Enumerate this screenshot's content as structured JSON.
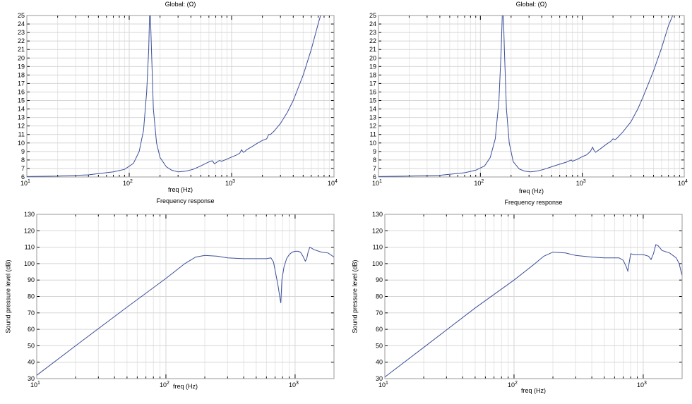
{
  "chart_data": [
    {
      "type": "line",
      "title": "Global:  (Ω)",
      "xlabel": "freq (Hz)",
      "ylabel": "",
      "xscale": "log",
      "xlim": [
        10,
        10000
      ],
      "ylim": [
        6,
        25
      ],
      "xticks": [
        10,
        100,
        1000,
        10000
      ],
      "xtick_labels": [
        [
          "10",
          "1"
        ],
        [
          "10",
          "2"
        ],
        [
          "10",
          "3"
        ],
        [
          "10",
          "4"
        ]
      ],
      "yticks": [
        6,
        7,
        8,
        9,
        10,
        11,
        12,
        13,
        14,
        15,
        16,
        17,
        18,
        19,
        20,
        21,
        22,
        23,
        24,
        25
      ],
      "grid": true,
      "series": [
        {
          "x": [
            10,
            20,
            40,
            70,
            90,
            110,
            125,
            138,
            148,
            155,
            158,
            161,
            165,
            172,
            185,
            200,
            230,
            260,
            300,
            360,
            420,
            500,
            560,
            620,
            650,
            680,
            720,
            760,
            800,
            900,
            1000,
            1100,
            1200,
            1250,
            1300,
            1350,
            1400,
            1600,
            1800,
            2000,
            2200,
            2300,
            2400,
            2600,
            3000,
            3500,
            4000,
            5000,
            6000,
            7000,
            7400
          ],
          "y": [
            6.05,
            6.1,
            6.25,
            6.6,
            6.9,
            7.6,
            9.0,
            11.5,
            16.0,
            21.0,
            25.0,
            25.0,
            21.0,
            14.0,
            10.0,
            8.3,
            7.2,
            6.8,
            6.6,
            6.7,
            6.9,
            7.3,
            7.6,
            7.85,
            7.9,
            7.55,
            7.75,
            7.95,
            7.85,
            8.1,
            8.35,
            8.55,
            8.8,
            9.2,
            8.9,
            9.0,
            9.2,
            9.6,
            10.0,
            10.3,
            10.5,
            11.0,
            11.0,
            11.4,
            12.3,
            13.6,
            15.0,
            18.0,
            21.0,
            24.0,
            25.0
          ]
        }
      ]
    },
    {
      "type": "line",
      "title": "Global:  (Ω)",
      "xlabel": "freq (Hz)",
      "ylabel": "",
      "xscale": "log",
      "xlim": [
        10,
        10000
      ],
      "ylim": [
        6,
        25
      ],
      "xticks": [
        10,
        100,
        1000,
        10000
      ],
      "xtick_labels": [
        [
          "10",
          "1"
        ],
        [
          "10",
          "2"
        ],
        [
          "10",
          "3"
        ],
        [
          "10",
          "4"
        ]
      ],
      "yticks": [
        6,
        7,
        8,
        9,
        10,
        11,
        12,
        13,
        14,
        15,
        16,
        17,
        18,
        19,
        20,
        21,
        22,
        23,
        24,
        25
      ],
      "grid": true,
      "series": [
        {
          "x": [
            10,
            20,
            40,
            70,
            90,
            110,
            125,
            140,
            152,
            160,
            164,
            168,
            172,
            180,
            192,
            210,
            240,
            270,
            310,
            360,
            420,
            500,
            600,
            700,
            760,
            780,
            800,
            900,
            1000,
            1100,
            1200,
            1260,
            1300,
            1350,
            1500,
            1700,
            1900,
            2000,
            2100,
            2200,
            2500,
            3000,
            3500,
            4000,
            5000,
            6000,
            7000,
            7700
          ],
          "y": [
            6.05,
            6.1,
            6.2,
            6.5,
            6.8,
            7.3,
            8.3,
            10.5,
            15.0,
            21.0,
            25.0,
            25.0,
            21.0,
            14.0,
            10.0,
            7.8,
            6.95,
            6.7,
            6.6,
            6.7,
            6.9,
            7.2,
            7.5,
            7.75,
            7.95,
            8.0,
            7.85,
            8.1,
            8.4,
            8.6,
            9.0,
            9.5,
            9.15,
            8.9,
            9.3,
            9.8,
            10.2,
            10.5,
            10.4,
            10.6,
            11.3,
            12.5,
            14.0,
            15.6,
            18.5,
            21.2,
            23.8,
            25.0
          ]
        }
      ]
    },
    {
      "type": "line",
      "title": "Frequency response",
      "xlabel": "freq (Hz)",
      "ylabel": "Sound pressure level (dB)",
      "xscale": "log",
      "xlim": [
        10,
        2000
      ],
      "ylim": [
        30,
        130
      ],
      "xticks": [
        10,
        100,
        1000
      ],
      "xtick_labels": [
        [
          "10",
          "1"
        ],
        [
          "10",
          "2"
        ],
        [
          "10",
          "3"
        ]
      ],
      "yticks": [
        30,
        40,
        50,
        60,
        70,
        80,
        90,
        100,
        110,
        120,
        130
      ],
      "grid": true,
      "series": [
        {
          "x": [
            10,
            20,
            50,
            100,
            140,
            170,
            200,
            250,
            300,
            400,
            500,
            600,
            650,
            680,
            700,
            720,
            740,
            760,
            775,
            790,
            820,
            860,
            900,
            950,
            1000,
            1050,
            1100,
            1150,
            1200,
            1230,
            1260,
            1300,
            1400,
            1600,
            1800,
            2000
          ],
          "y": [
            32,
            50,
            73.5,
            91,
            100,
            104,
            105,
            104.5,
            103.5,
            103,
            103,
            103,
            103.5,
            101,
            96,
            91,
            86,
            80,
            76,
            90,
            98,
            103,
            105.5,
            107,
            107.5,
            107.5,
            107,
            104.5,
            101.5,
            103,
            107,
            110,
            108.5,
            107,
            106.5,
            104
          ]
        }
      ]
    },
    {
      "type": "line",
      "title": "Frequency response",
      "xlabel": "freq (Hz)",
      "ylabel": "Sound pressure level (dB)",
      "xscale": "log",
      "xlim": [
        10,
        2000
      ],
      "ylim": [
        30,
        130
      ],
      "xticks": [
        10,
        100,
        1000
      ],
      "xtick_labels": [
        [
          "10",
          "1"
        ],
        [
          "10",
          "2"
        ],
        [
          "10",
          "3"
        ]
      ],
      "yticks": [
        30,
        40,
        50,
        60,
        70,
        80,
        90,
        100,
        110,
        120,
        130
      ],
      "grid": true,
      "series": [
        {
          "x": [
            10,
            20,
            50,
            100,
            140,
            170,
            200,
            250,
            300,
            400,
            500,
            600,
            650,
            700,
            740,
            760,
            780,
            800,
            850,
            900,
            1000,
            1100,
            1150,
            1200,
            1250,
            1300,
            1400,
            1600,
            1800,
            1900,
            1950,
            2000
          ],
          "y": [
            31,
            49,
            73,
            90,
            99,
            104.5,
            107,
            106.5,
            105,
            104,
            103.5,
            103.5,
            103.5,
            102,
            98,
            95.5,
            101,
            106,
            105.5,
            105.5,
            105.5,
            104.5,
            102.5,
            106,
            111.5,
            111,
            108,
            106.5,
            103.5,
            100,
            96,
            93
          ]
        }
      ]
    }
  ]
}
